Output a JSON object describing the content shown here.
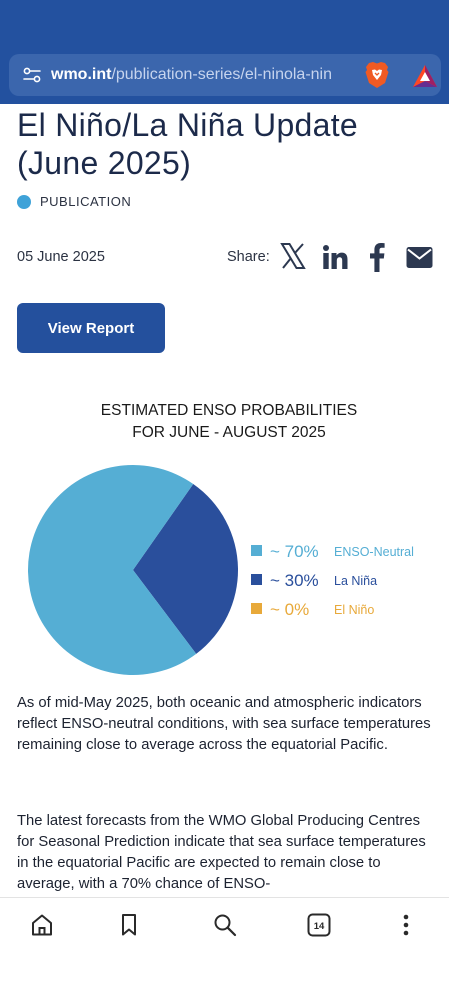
{
  "browser": {
    "url_domain": "wmo.int",
    "url_path": "/publication-series/el-ninola-nin",
    "tab_count": "14"
  },
  "article": {
    "title": "El Niño/La Niña Update (June 2025)",
    "category": "PUBLICATION",
    "date": "05 June 2025",
    "share_label": "Share:",
    "view_report_label": "View Report",
    "paragraph1": "As of mid-May 2025, both oceanic and atmospheric indicators reflect ENSO-neutral conditions, with sea surface temperatures remaining close to average across the equatorial Pacific.",
    "paragraph2": "The latest forecasts from the WMO Global Producing Centres for Seasonal Prediction indicate that sea surface temperatures in the equatorial Pacific are expected to remain close to average, with a 70% chance of ENSO-"
  },
  "chart_data": {
    "type": "pie",
    "title_line1": "ESTIMATED ENSO PROBABILITIES",
    "title_line2": "FOR JUNE - AUGUST 2025",
    "slices": [
      {
        "label": "ENSO-Neutral",
        "value": 70,
        "display": "~ 70%",
        "color": "#55aed4"
      },
      {
        "label": "La Niña",
        "value": 30,
        "display": "~ 30%",
        "color": "#2a4f9c"
      },
      {
        "label": "El Niño",
        "value": 0,
        "display": "~ 0%",
        "color": "#e8a93a"
      }
    ]
  },
  "colors": {
    "header": "#23519f",
    "button": "#24509d",
    "category_dot": "#3fa2d8"
  }
}
